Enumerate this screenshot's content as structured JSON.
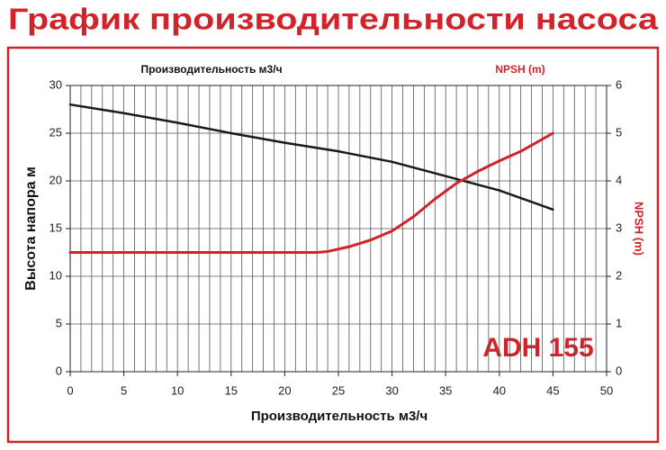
{
  "chart_data": {
    "type": "line",
    "title": "График производительности насоса",
    "subtitle_left": "Производительность м3/ч",
    "subtitle_right": "NPSH (m)",
    "xlabel": "Производительность м3/ч",
    "ylabel": "Высота напора м",
    "y2label": "NPSH (m)",
    "annotation": "ADH 155",
    "xlim": [
      0,
      50
    ],
    "xticks": [
      0,
      5,
      10,
      15,
      20,
      25,
      30,
      35,
      40,
      45,
      50
    ],
    "xgrid": [
      0,
      1,
      2,
      3,
      4,
      5,
      6,
      7,
      8,
      9,
      10,
      11,
      12,
      13,
      14,
      15,
      16,
      17,
      18,
      19,
      20,
      21,
      22,
      23,
      24,
      25,
      26,
      27,
      28,
      29,
      30,
      31,
      32,
      33,
      34,
      35,
      36,
      37,
      38,
      39,
      40,
      41,
      42,
      43,
      44,
      45,
      46,
      47,
      48,
      49,
      50
    ],
    "ylim": [
      0,
      30
    ],
    "yticks": [
      0,
      5,
      10,
      15,
      20,
      25,
      30
    ],
    "y2lim": [
      0,
      6
    ],
    "y2ticks": [
      0,
      1,
      2,
      3,
      4,
      5,
      6
    ],
    "grid": true,
    "series": [
      {
        "name": "Высота напора",
        "color": "#1a1a1a",
        "x": [
          0,
          5,
          10,
          15,
          20,
          25,
          30,
          33,
          35,
          37,
          40,
          43,
          45
        ],
        "values": [
          28,
          27.1,
          26.1,
          25,
          24,
          23.1,
          22,
          21.1,
          20.5,
          19.9,
          19,
          17.8,
          17
        ]
      },
      {
        "name": "NPSH",
        "color": "#d2232a",
        "axis": "y2",
        "x": [
          0,
          5,
          10,
          15,
          20,
          23,
          24,
          26,
          28,
          30,
          32,
          34,
          36,
          38,
          40,
          42,
          45
        ],
        "values": [
          2.5,
          2.5,
          2.5,
          2.5,
          2.5,
          2.5,
          2.52,
          2.62,
          2.76,
          2.95,
          3.25,
          3.62,
          3.95,
          4.2,
          4.42,
          4.62,
          5.0
        ]
      }
    ]
  }
}
